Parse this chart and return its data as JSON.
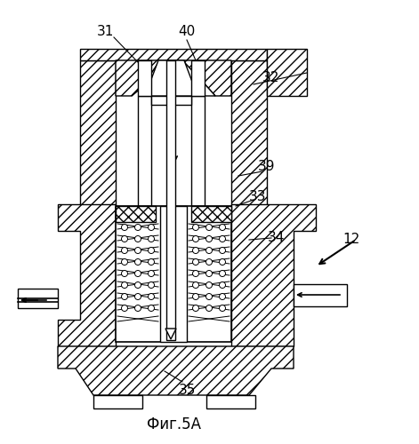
{
  "title": "Фиг.5А",
  "bg_color": "#ffffff",
  "fig_width": 4.71,
  "fig_height": 5.0,
  "dpi": 100
}
